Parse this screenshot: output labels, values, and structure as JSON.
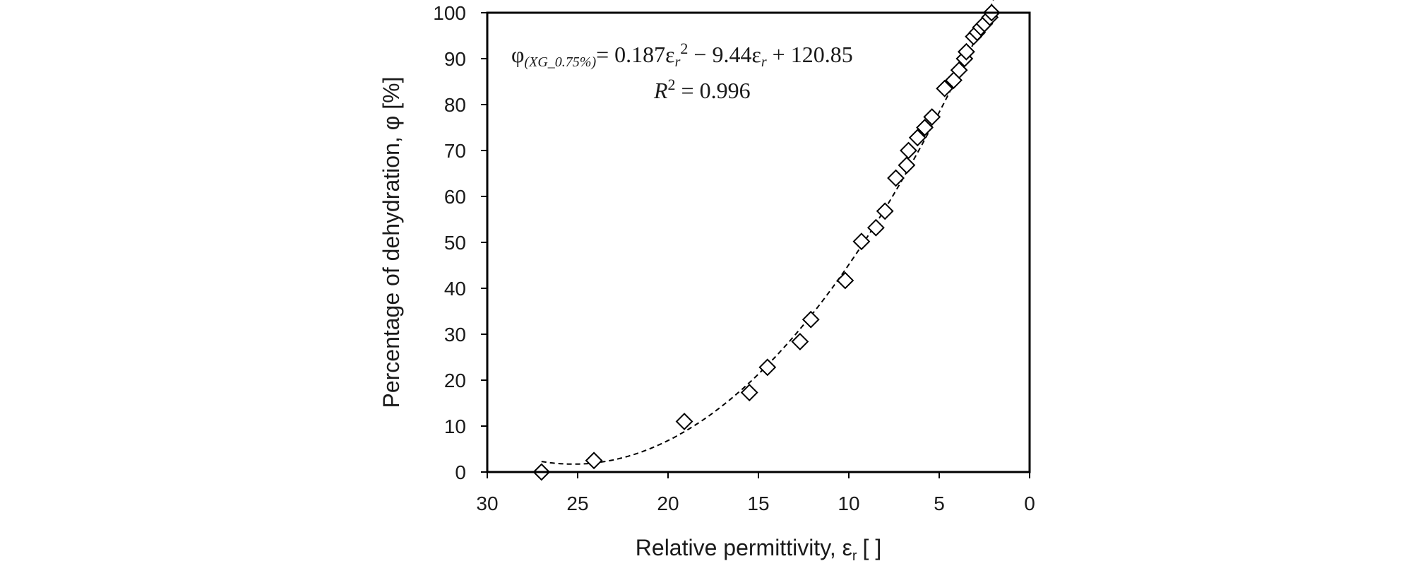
{
  "chart_data": {
    "type": "scatter",
    "xlabel": "Relative permittivity, ε",
    "xlabel_sub": "r",
    "xlabel_unit": "[  ]",
    "ylabel": "Percentage of dehydration, φ [%]",
    "xlim": [
      30,
      0
    ],
    "ylim": [
      0,
      100
    ],
    "x_reversed": true,
    "xticks": [
      30,
      25,
      20,
      15,
      10,
      5,
      0
    ],
    "yticks": [
      0,
      10,
      20,
      30,
      40,
      50,
      60,
      70,
      80,
      90,
      100
    ],
    "grid": false,
    "legend": "none",
    "marker": "diamond-open",
    "trendline": {
      "style": "dashed",
      "type": "polynomial",
      "coefficients": {
        "a": 0.187,
        "b": -9.44,
        "c": 120.85
      },
      "x_range": [
        27,
        2
      ]
    },
    "equation": {
      "phi": "φ",
      "phi_sub": "(XG_0.75%)",
      "rhs_1": "= 0.187ε",
      "rhs_1_sub": "r",
      "rhs_1_sup": "2",
      "rhs_2": " − 9.44ε",
      "rhs_2_sub": "r",
      "rhs_3": " + 120.85",
      "r2_R": "R",
      "r2_sup": "2",
      "r2_val": " = 0.996"
    },
    "points": [
      {
        "x": 27.0,
        "y": 0.0
      },
      {
        "x": 24.1,
        "y": 2.5
      },
      {
        "x": 19.1,
        "y": 11.0
      },
      {
        "x": 15.5,
        "y": 17.3
      },
      {
        "x": 14.5,
        "y": 22.8
      },
      {
        "x": 12.7,
        "y": 28.4
      },
      {
        "x": 12.1,
        "y": 33.2
      },
      {
        "x": 10.2,
        "y": 41.7
      },
      {
        "x": 9.3,
        "y": 50.2
      },
      {
        "x": 8.5,
        "y": 53.2
      },
      {
        "x": 8.0,
        "y": 56.8
      },
      {
        "x": 7.4,
        "y": 64.0
      },
      {
        "x": 6.8,
        "y": 66.8
      },
      {
        "x": 6.7,
        "y": 70.0
      },
      {
        "x": 6.2,
        "y": 72.8
      },
      {
        "x": 5.8,
        "y": 75.0
      },
      {
        "x": 5.4,
        "y": 77.3
      },
      {
        "x": 4.7,
        "y": 83.5
      },
      {
        "x": 4.2,
        "y": 85.3
      },
      {
        "x": 3.9,
        "y": 87.5
      },
      {
        "x": 3.6,
        "y": 90.0
      },
      {
        "x": 3.5,
        "y": 91.5
      },
      {
        "x": 3.1,
        "y": 94.8
      },
      {
        "x": 2.9,
        "y": 95.7
      },
      {
        "x": 2.7,
        "y": 96.8
      },
      {
        "x": 2.5,
        "y": 97.6
      },
      {
        "x": 2.2,
        "y": 99.0
      },
      {
        "x": 2.1,
        "y": 100.0
      }
    ]
  }
}
